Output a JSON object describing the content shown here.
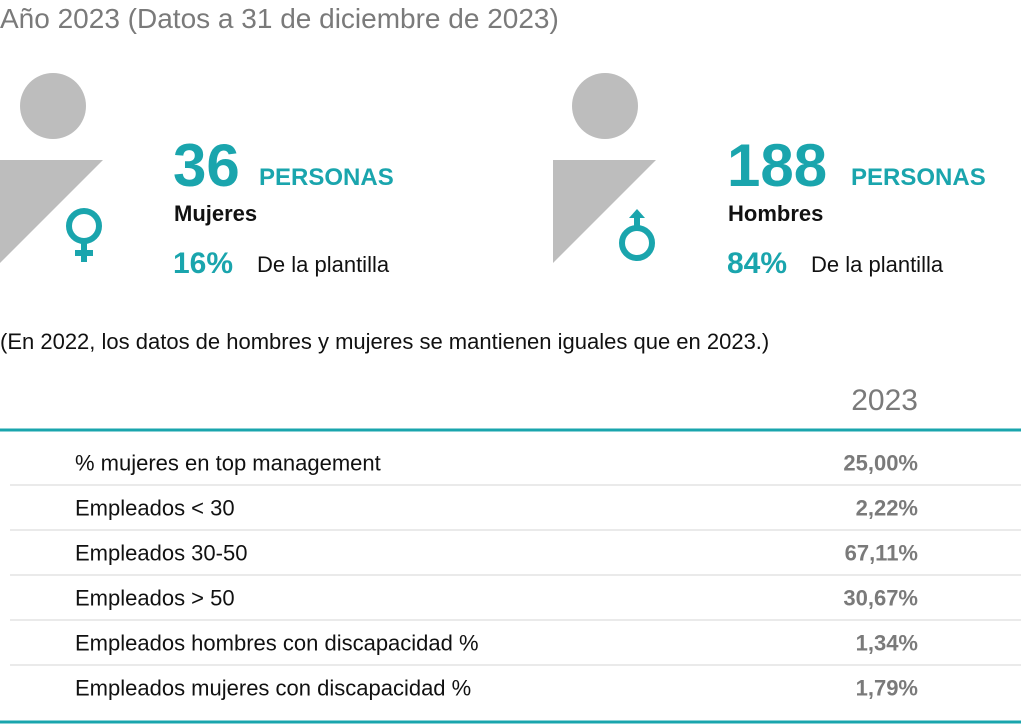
{
  "header": {
    "title": "Año 2023 (Datos a 31 de diciembre de 2023)"
  },
  "women": {
    "number": "36",
    "unit": "PERSONAS",
    "label": "Mujeres",
    "percent": "16%",
    "percent_label": "De la plantilla"
  },
  "men": {
    "number": "188",
    "unit": "PERSONAS",
    "label": "Hombres",
    "percent": "84%",
    "percent_label": "De la plantilla"
  },
  "note": "(En 2022, los datos de hombres y mujeres se mantienen iguales que en 2023.)",
  "table": {
    "header": "2023",
    "rows": [
      [
        "% mujeres en top management",
        "25,00%"
      ],
      [
        "Empleados < 30",
        "2,22%"
      ],
      [
        "Empleados 30-50",
        "67,11%"
      ],
      [
        "Empleados > 50",
        "30,67%"
      ],
      [
        "Empleados hombres con discapacidad %",
        "1,34%"
      ],
      [
        "Empleados mujeres con discapacidad %",
        "1,79%"
      ]
    ]
  }
}
